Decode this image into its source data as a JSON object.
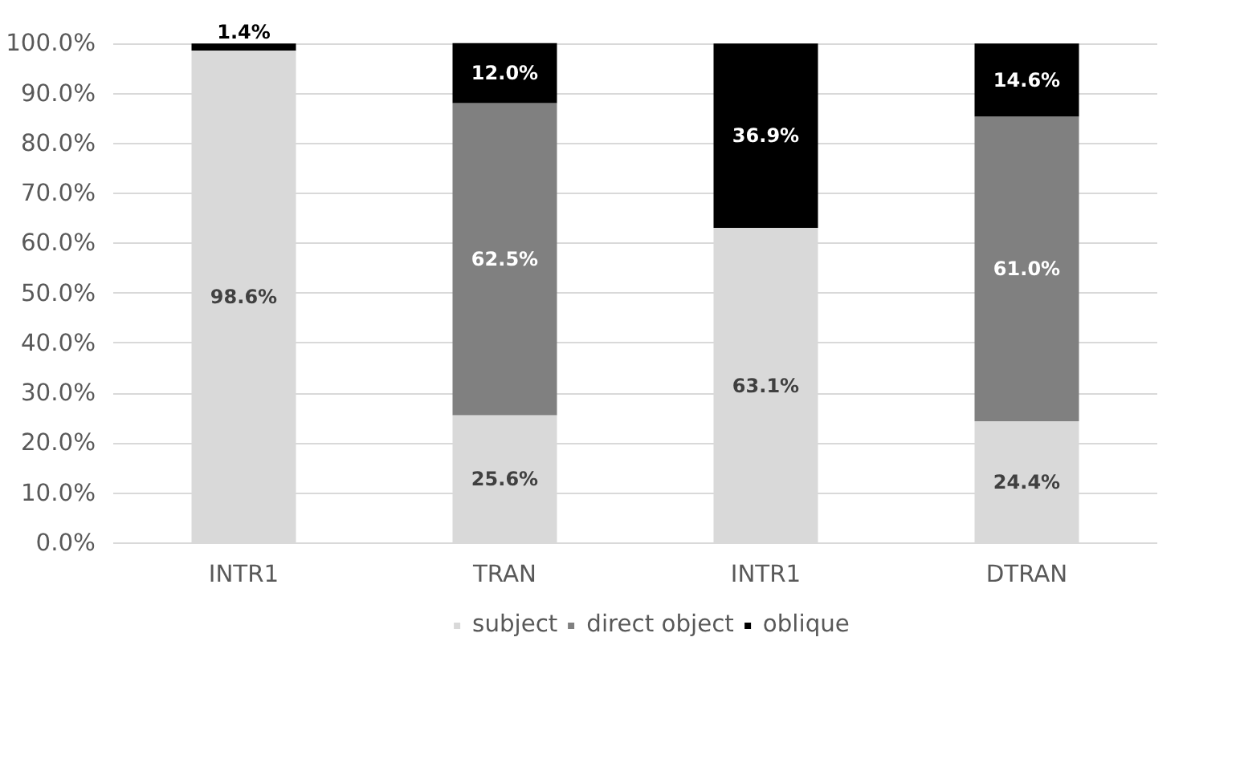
{
  "chart_data": {
    "type": "bar",
    "stacked": true,
    "categories": [
      "INTR1",
      "TRAN",
      "INTR1",
      "DTRAN"
    ],
    "series": [
      {
        "name": "subject",
        "color": "#d9d9d9",
        "values": [
          98.6,
          25.6,
          63.1,
          24.4
        ],
        "value_labels": [
          "98.6%",
          "25.6%",
          "63.1%",
          "24.4%"
        ]
      },
      {
        "name": "direct object",
        "color": "#808080",
        "values": [
          0,
          62.5,
          0,
          61.0
        ],
        "value_labels": [
          null,
          "62.5%",
          null,
          "61.0%"
        ]
      },
      {
        "name": "oblique",
        "color": "#000000",
        "values": [
          1.4,
          12.0,
          36.9,
          14.6
        ],
        "value_labels": [
          "1.4%",
          "12.0%",
          "36.9%",
          "14.6%"
        ]
      }
    ],
    "ylim": [
      0,
      100
    ],
    "yticks": [
      {
        "value": 0,
        "label": "0.0%"
      },
      {
        "value": 10,
        "label": "10.0%"
      },
      {
        "value": 20,
        "label": "20.0%"
      },
      {
        "value": 30,
        "label": "30.0%"
      },
      {
        "value": 40,
        "label": "40.0%"
      },
      {
        "value": 50,
        "label": "50.0%"
      },
      {
        "value": 60,
        "label": "60.0%"
      },
      {
        "value": 70,
        "label": "70.0%"
      },
      {
        "value": 80,
        "label": "80.0%"
      },
      {
        "value": 90,
        "label": "90.0%"
      },
      {
        "value": 100,
        "label": "100.0%"
      }
    ],
    "grid": "y",
    "legend": "bottom"
  }
}
